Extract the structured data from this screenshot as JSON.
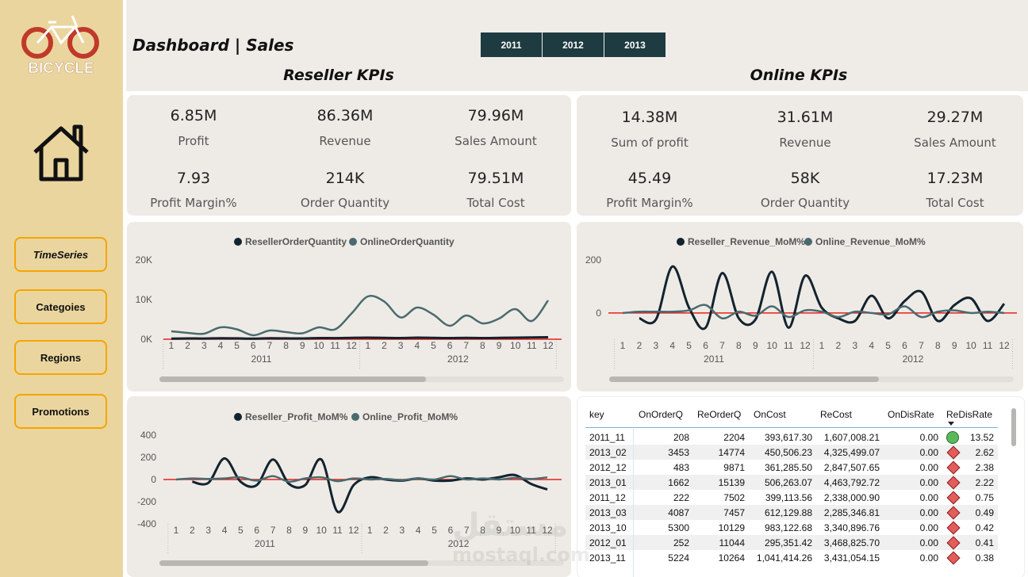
{
  "logo": {
    "text": "BICYCLE"
  },
  "nav": [
    "TimeSeries",
    "Categoies",
    "Regions",
    "Promotions"
  ],
  "header": {
    "title": "Dashboard | Sales",
    "years": [
      "2011",
      "2012",
      "2013"
    ]
  },
  "reseller": {
    "title": "Reseller KPIs",
    "kpis": [
      {
        "value": "6.85M",
        "label": "Profit"
      },
      {
        "value": "86.36M",
        "label": "Revenue"
      },
      {
        "value": "79.96M",
        "label": "Sales Amount"
      },
      {
        "value": "7.93",
        "label": "Profit Margin%"
      },
      {
        "value": "214K",
        "label": "Order Quantity"
      },
      {
        "value": "79.51M",
        "label": "Total Cost"
      }
    ]
  },
  "online": {
    "title": "Online KPIs",
    "kpis": [
      {
        "value": "14.38M",
        "label": "Sum of profit"
      },
      {
        "value": "31.61M",
        "label": "Revenue"
      },
      {
        "value": "29.27M",
        "label": "Sales Amount"
      },
      {
        "value": "45.49",
        "label": "Profit Margin%"
      },
      {
        "value": "58K",
        "label": "Order Quantity"
      },
      {
        "value": "17.23M",
        "label": "Total Cost"
      }
    ]
  },
  "chart_data": [
    {
      "type": "line",
      "categories": [
        "1",
        "2",
        "3",
        "4",
        "5",
        "6",
        "7",
        "8",
        "9",
        "10",
        "11",
        "12",
        "1",
        "2",
        "3",
        "4",
        "5",
        "6",
        "7",
        "8",
        "9",
        "10",
        "11",
        "12"
      ],
      "groups": [
        "2011",
        "2012"
      ],
      "ylim": [
        0,
        20000
      ],
      "yticks": [
        {
          "value": 0,
          "label": "0K"
        },
        {
          "value": 10000,
          "label": "10K"
        },
        {
          "value": 20000,
          "label": "20K"
        }
      ],
      "reference_line": 0,
      "reference_color": "#e8201a",
      "series": [
        {
          "name": "ResellerOrderQuantity",
          "color": "#13232f",
          "values": [
            150,
            200,
            180,
            250,
            220,
            150,
            250,
            220,
            200,
            300,
            280,
            350,
            400,
            350,
            300,
            400,
            350,
            300,
            350,
            300,
            350,
            400,
            450,
            500
          ]
        },
        {
          "name": "OnlineOrderQuantity",
          "color": "#4a6a70",
          "values": [
            2000,
            1600,
            1400,
            3000,
            2500,
            1000,
            2200,
            1800,
            1500,
            3000,
            2500,
            6500,
            10800,
            9500,
            5500,
            8000,
            6200,
            3400,
            6000,
            4000,
            5200,
            7600,
            4600,
            9800
          ]
        }
      ]
    },
    {
      "type": "line",
      "categories": [
        "1",
        "2",
        "3",
        "4",
        "5",
        "6",
        "7",
        "8",
        "9",
        "10",
        "11",
        "12",
        "1",
        "2",
        "3",
        "4",
        "5",
        "6",
        "7",
        "8",
        "9",
        "10",
        "11",
        "12"
      ],
      "groups": [
        "2011",
        "2012"
      ],
      "ylim": [
        -100,
        250
      ],
      "yticks": [
        0,
        200
      ],
      "reference_line": 0,
      "reference_color": "#e8201a",
      "series": [
        {
          "name": "Reseller_Revenue_MoM%",
          "color": "#13232f",
          "values": [
            null,
            -20,
            -25,
            175,
            20,
            -55,
            150,
            -20,
            -25,
            155,
            -55,
            140,
            20,
            -20,
            -30,
            65,
            -20,
            45,
            80,
            -30,
            30,
            55,
            -30,
            35
          ]
        },
        {
          "name": "Online_Revenue_MoM%",
          "color": "#4a6a70",
          "values": [
            0,
            5,
            5,
            5,
            10,
            30,
            -20,
            5,
            -10,
            25,
            -15,
            10,
            5,
            -15,
            5,
            0,
            -5,
            25,
            -15,
            5,
            10,
            0,
            5,
            0
          ]
        }
      ]
    },
    {
      "type": "line",
      "categories": [
        "1",
        "2",
        "3",
        "4",
        "5",
        "6",
        "7",
        "8",
        "9",
        "10",
        "11",
        "12",
        "1",
        "2",
        "3",
        "4",
        "5",
        "6",
        "7",
        "8",
        "9",
        "10",
        "11",
        "12"
      ],
      "groups": [
        "2011",
        "2012"
      ],
      "ylim": [
        -400,
        400
      ],
      "yticks": [
        -400,
        -200,
        0,
        200,
        400
      ],
      "reference_line": 0,
      "reference_color": "#e8201a",
      "series": [
        {
          "name": "Reseller_Profit_MoM%",
          "color": "#13232f",
          "values": [
            null,
            -20,
            -30,
            190,
            -20,
            -50,
            180,
            -40,
            -50,
            180,
            -290,
            -50,
            20,
            0,
            -10,
            10,
            -10,
            -10,
            10,
            0,
            20,
            40,
            -40,
            -90
          ]
        },
        {
          "name": "Online_Profit_MoM%",
          "color": "#4a6a70",
          "values": [
            0,
            10,
            5,
            10,
            20,
            -10,
            30,
            -20,
            10,
            20,
            -15,
            10,
            0,
            5,
            -5,
            10,
            0,
            30,
            0,
            10,
            0,
            15,
            5,
            20
          ]
        }
      ]
    }
  ],
  "table": {
    "columns": [
      "key",
      "OnOrderQ",
      "ReOrderQ",
      "OnCost",
      "ReCost",
      "OnDisRate",
      "ReDisRate"
    ],
    "rows": [
      [
        "2011_11",
        "208",
        "2204",
        "393,617.30",
        "1,607,008.21",
        "0.00",
        "13.52"
      ],
      [
        "2013_02",
        "3453",
        "14774",
        "450,506.23",
        "4,325,499.07",
        "0.00",
        "2.62"
      ],
      [
        "2012_12",
        "483",
        "9871",
        "361,285.50",
        "2,847,507.65",
        "0.00",
        "2.38"
      ],
      [
        "2013_01",
        "1662",
        "15139",
        "506,263.07",
        "4,463,792.72",
        "0.00",
        "2.22"
      ],
      [
        "2011_12",
        "222",
        "7502",
        "399,113.56",
        "2,338,000.90",
        "0.00",
        "0.75"
      ],
      [
        "2013_03",
        "4087",
        "7457",
        "612,129.88",
        "2,285,346.81",
        "0.00",
        "0.49"
      ],
      [
        "2013_10",
        "5300",
        "10129",
        "983,122.68",
        "3,340,896.76",
        "0.00",
        "0.42"
      ],
      [
        "2012_01",
        "252",
        "11044",
        "295,351.42",
        "3,468,825.70",
        "0.00",
        "0.41"
      ],
      [
        "2013_11",
        "5224",
        "10264",
        "1,041,414.26",
        "3,431,054.15",
        "0.00",
        "0.38"
      ]
    ],
    "row_icons": [
      "circle",
      "diamond",
      "diamond",
      "diamond",
      "diamond",
      "diamond",
      "diamond",
      "diamond",
      "diamond"
    ]
  },
  "watermark": [
    "مستقل",
    "mostaql.com"
  ]
}
